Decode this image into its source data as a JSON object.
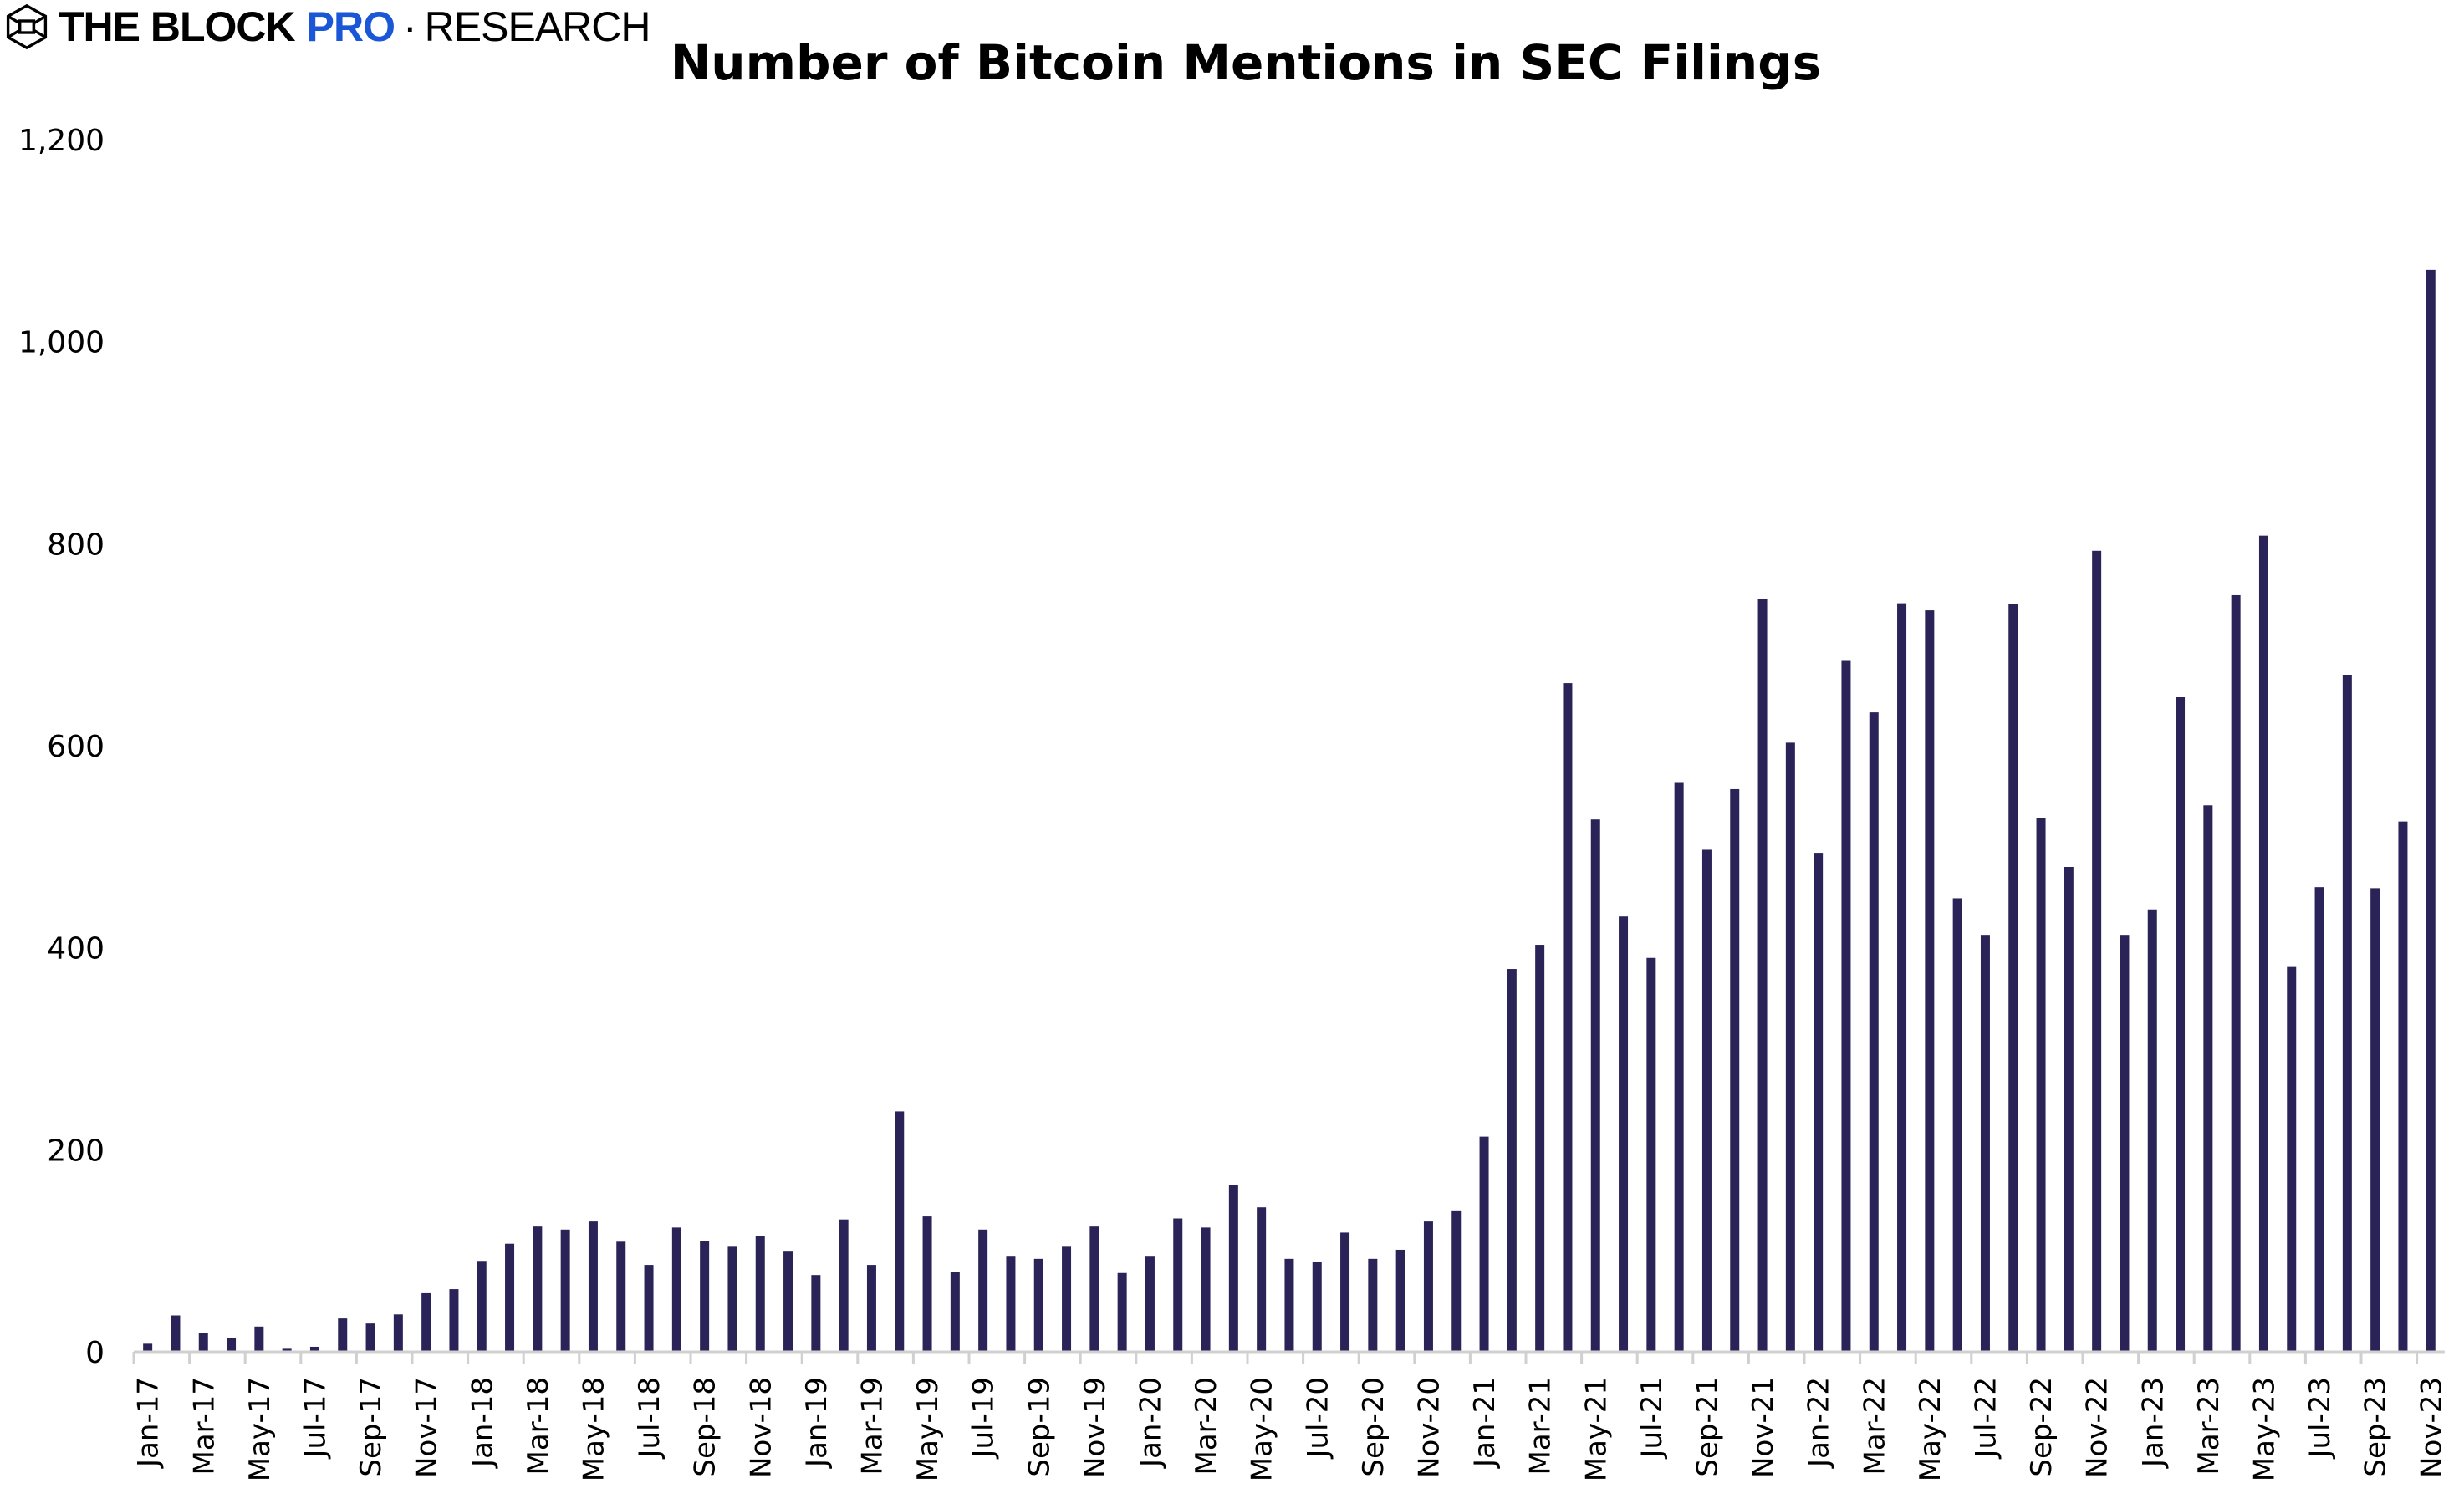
{
  "logo": {
    "brand": "THE BLOCK",
    "pro": "PRO",
    "separator": "·",
    "section": "RESEARCH",
    "brand_color": "#1a56d6"
  },
  "chart_data": {
    "type": "bar",
    "title": "Number of Bitcoin Mentions in SEC Filings",
    "xlabel": "",
    "ylabel": "",
    "ylim": [
      0,
      1200
    ],
    "yticks": [
      0,
      200,
      400,
      600,
      800,
      1000,
      1200
    ],
    "ytick_labels": [
      "0",
      "200",
      "400",
      "600",
      "800",
      "1,000",
      "1,200"
    ],
    "grid": false,
    "bar_color": "#2a2358",
    "categories": [
      "Jan-17",
      "Feb-17",
      "Mar-17",
      "Apr-17",
      "May-17",
      "Jun-17",
      "Jul-17",
      "Aug-17",
      "Sep-17",
      "Oct-17",
      "Nov-17",
      "Dec-17",
      "Jan-18",
      "Feb-18",
      "Mar-18",
      "Apr-18",
      "May-18",
      "Jun-18",
      "Jul-18",
      "Aug-18",
      "Sep-18",
      "Oct-18",
      "Nov-18",
      "Dec-18",
      "Jan-19",
      "Feb-19",
      "Mar-19",
      "Apr-19",
      "May-19",
      "Jun-19",
      "Jul-19",
      "Aug-19",
      "Sep-19",
      "Oct-19",
      "Nov-19",
      "Dec-19",
      "Jan-20",
      "Feb-20",
      "Mar-20",
      "Apr-20",
      "May-20",
      "Jun-20",
      "Jul-20",
      "Aug-20",
      "Sep-20",
      "Oct-20",
      "Nov-20",
      "Dec-20",
      "Jan-21",
      "Feb-21",
      "Mar-21",
      "Apr-21",
      "May-21",
      "Jun-21",
      "Jul-21",
      "Aug-21",
      "Sep-21",
      "Oct-21",
      "Nov-21",
      "Dec-21",
      "Jan-22",
      "Feb-22",
      "Mar-22",
      "Apr-22",
      "May-22",
      "Jun-22",
      "Jul-22",
      "Aug-22",
      "Sep-22",
      "Oct-22",
      "Nov-22",
      "Dec-22",
      "Jan-23",
      "Feb-23",
      "Mar-23",
      "Apr-23",
      "May-23",
      "Jun-23",
      "Jul-23",
      "Aug-23",
      "Sep-23",
      "Oct-23",
      "Nov-23"
    ],
    "values": [
      8,
      36,
      19,
      14,
      25,
      3,
      5,
      33,
      28,
      37,
      58,
      62,
      90,
      107,
      124,
      121,
      129,
      109,
      86,
      123,
      110,
      104,
      115,
      100,
      76,
      131,
      86,
      238,
      134,
      79,
      121,
      95,
      92,
      104,
      124,
      78,
      95,
      132,
      123,
      165,
      143,
      92,
      89,
      118,
      92,
      101,
      129,
      140,
      213,
      379,
      403,
      662,
      527,
      431,
      390,
      564,
      497,
      557,
      745,
      603,
      494,
      684,
      633,
      741,
      734,
      449,
      412,
      740,
      528,
      480,
      793,
      412,
      438,
      648,
      541,
      749,
      808,
      381,
      460,
      670,
      459,
      525,
      1071
    ],
    "xtick_labels_every": 2
  }
}
